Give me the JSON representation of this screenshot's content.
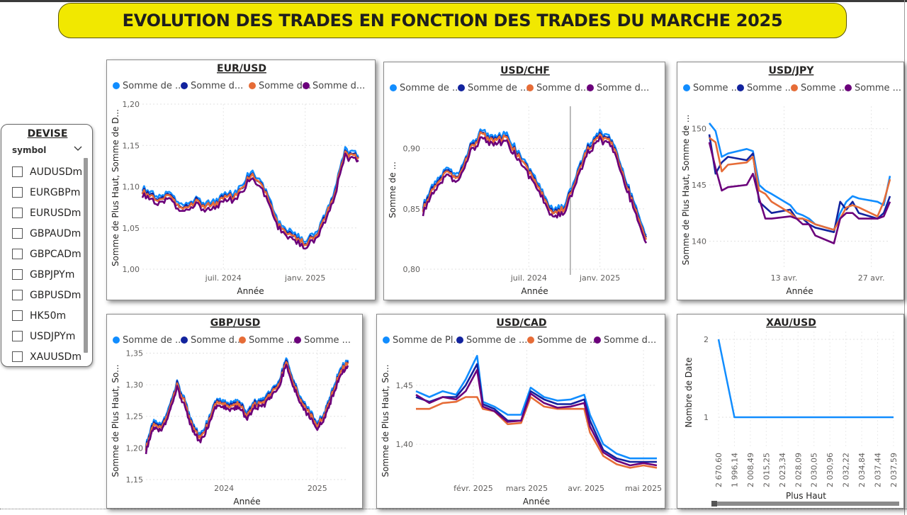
{
  "title": "EVOLUTION DES TRADES EN FONCTION DES TRADES DU MARCHE 2025",
  "slicer": {
    "title": "DEVISE",
    "field": "symbol",
    "items": [
      "AUDUSDm",
      "EURGBPm",
      "EURUSDm",
      "GBPAUDm",
      "GBPCADm",
      "GBPJPYm",
      "GBPUSDm",
      "HK50m",
      "USDJPYm",
      "XAUUSDm"
    ]
  },
  "colors": {
    "series": [
      "#118dff",
      "#12239e",
      "#e66c37",
      "#6b007b"
    ],
    "banner": "#f1e800"
  },
  "chart_data": [
    {
      "id": "eurusd",
      "type": "line",
      "title": "EUR/USD",
      "legend": [
        "Somme de ...",
        "Somme d...",
        "Somme d...",
        "Somme d..."
      ],
      "xlabel": "Année",
      "ylabel": "Somme de Plus Haut, Somme de D...",
      "xticks": [
        "juil. 2024",
        "janv. 2025"
      ],
      "yticks": [
        "1,20",
        "1,15",
        "1,10",
        "1,05",
        "1,00"
      ],
      "ylim": [
        1.0,
        1.2
      ],
      "series_offsets": [
        0.004,
        0.001,
        0.0,
        -0.004
      ],
      "x": [
        "2024-01",
        "2024-02",
        "2024-03",
        "2024-04",
        "2024-05",
        "2024-06",
        "2024-07",
        "2024-08",
        "2024-09",
        "2024-10",
        "2024-11",
        "2024-12",
        "2025-01",
        "2025-02",
        "2025-03",
        "2025-04",
        "2025-05"
      ],
      "base": [
        1.095,
        1.085,
        1.088,
        1.072,
        1.082,
        1.075,
        1.085,
        1.09,
        1.115,
        1.095,
        1.055,
        1.04,
        1.03,
        1.045,
        1.08,
        1.14,
        1.135
      ]
    },
    {
      "id": "usdchf",
      "type": "line",
      "title": "USD/CHF",
      "legend": [
        "Somme de ...",
        "Somme de ...",
        "Somme d...",
        "Somme d..."
      ],
      "xlabel": "Année",
      "ylabel": "Somme de ...",
      "xticks": [
        "juil. 2024",
        "janv. 2025"
      ],
      "yticks": [
        "0,90",
        "0,85",
        "0,80"
      ],
      "ylim": [
        0.8,
        0.935
      ],
      "series_offsets": [
        0.003,
        0.001,
        0.0,
        -0.003
      ],
      "x": [
        "2023-10",
        "2023-11",
        "2023-12",
        "2024-01",
        "2024-02",
        "2024-03",
        "2024-04",
        "2024-05",
        "2024-06",
        "2024-07",
        "2024-08",
        "2024-09",
        "2024-10",
        "2024-11",
        "2024-12",
        "2025-01",
        "2025-02",
        "2025-03",
        "2025-04",
        "2025-05"
      ],
      "base": [
        0.85,
        0.87,
        0.88,
        0.875,
        0.9,
        0.912,
        0.905,
        0.91,
        0.895,
        0.88,
        0.865,
        0.845,
        0.85,
        0.875,
        0.9,
        0.91,
        0.905,
        0.88,
        0.85,
        0.825
      ]
    },
    {
      "id": "usdjpy",
      "type": "line",
      "title": "USD/JPY",
      "legend": [
        "Somme ...",
        "Somme ...",
        "Somme ...",
        "Somme ..."
      ],
      "xlabel": "Année",
      "ylabel": "Somme de Plus Haut, Somme de ...",
      "xticks": [
        "13 avr.",
        "27 avr."
      ],
      "yticks": [
        "150",
        "145",
        "140"
      ],
      "ylim": [
        137.5,
        152
      ],
      "x": [
        "2025-04-01",
        "2025-04-02",
        "2025-04-03",
        "2025-04-04",
        "2025-04-07",
        "2025-04-08",
        "2025-04-09",
        "2025-04-10",
        "2025-04-11",
        "2025-04-14",
        "2025-04-15",
        "2025-04-16",
        "2025-04-17",
        "2025-04-18",
        "2025-04-21",
        "2025-04-22",
        "2025-04-23",
        "2025-04-24",
        "2025-04-25",
        "2025-04-28",
        "2025-04-29",
        "2025-04-30"
      ],
      "series": [
        {
          "values": [
            150.5,
            149.8,
            147.5,
            147.8,
            148.2,
            148.0,
            145.0,
            144.5,
            144.2,
            143.2,
            142.5,
            142.3,
            142.0,
            141.5,
            141.0,
            142.5,
            143.5,
            144.0,
            143.8,
            143.5,
            143.2,
            145.8
          ]
        },
        {
          "values": [
            149.5,
            146.0,
            147.0,
            147.5,
            147.2,
            147.8,
            143.5,
            143.0,
            142.5,
            142.8,
            142.0,
            142.0,
            141.5,
            141.2,
            140.8,
            143.5,
            142.8,
            143.5,
            142.5,
            142.0,
            142.5,
            144.0
          ]
        },
        {
          "values": [
            149.2,
            148.8,
            146.2,
            146.8,
            147.0,
            147.5,
            144.5,
            144.2,
            143.5,
            142.5,
            142.0,
            142.0,
            141.8,
            141.5,
            141.0,
            142.0,
            143.0,
            143.2,
            143.0,
            142.2,
            143.5,
            145.5
          ]
        },
        {
          "values": [
            148.8,
            146.5,
            144.5,
            144.8,
            145.0,
            146.0,
            143.8,
            142.0,
            142.0,
            142.2,
            142.0,
            141.5,
            141.5,
            140.5,
            139.8,
            142.0,
            142.5,
            142.5,
            142.0,
            142.0,
            142.2,
            143.5
          ]
        }
      ]
    },
    {
      "id": "gbpusd",
      "type": "line",
      "title": "GBP/USD",
      "legend": [
        "Somme de ...",
        "Somme d...",
        "Somme ...",
        "Somme ..."
      ],
      "xlabel": "Année",
      "ylabel": "Somme de Plus Haut, So...",
      "xticks": [
        "2024",
        "2025"
      ],
      "yticks": [
        "1,35",
        "1,30",
        "1,25",
        "1,20",
        "1,15"
      ],
      "ylim": [
        1.15,
        1.355
      ],
      "series_offsets": [
        0.005,
        0.002,
        0.0,
        -0.005
      ],
      "x": [
        "2023-03",
        "2023-04",
        "2023-05",
        "2023-06",
        "2023-07",
        "2023-08",
        "2023-09",
        "2023-10",
        "2023-11",
        "2023-12",
        "2024-01",
        "2024-02",
        "2024-03",
        "2024-04",
        "2024-05",
        "2024-06",
        "2024-07",
        "2024-08",
        "2024-09",
        "2024-10",
        "2024-11",
        "2024-12",
        "2025-01",
        "2025-02",
        "2025-03",
        "2025-04",
        "2025-05"
      ],
      "base": [
        1.2,
        1.24,
        1.23,
        1.26,
        1.3,
        1.27,
        1.23,
        1.215,
        1.24,
        1.27,
        1.27,
        1.265,
        1.27,
        1.25,
        1.27,
        1.27,
        1.285,
        1.3,
        1.335,
        1.3,
        1.27,
        1.255,
        1.235,
        1.255,
        1.285,
        1.32,
        1.335
      ]
    },
    {
      "id": "usdcad",
      "type": "line",
      "title": "USD/CAD",
      "legend": [
        "Somme de  Pl...",
        "Somme de ...",
        "Somme de ...",
        "Somme d..."
      ],
      "xlabel": "Année",
      "ylabel": "Somme de Plus Haut, So...",
      "xticks": [
        "févr. 2025",
        "mars 2025",
        "avr. 2025",
        "mai 2025"
      ],
      "yticks": [
        "1,45",
        "1,40"
      ],
      "ylim": [
        1.37,
        1.48
      ],
      "x": [
        "2025-01-02",
        "2025-01-09",
        "2025-01-16",
        "2025-01-23",
        "2025-01-28",
        "2025-02-03",
        "2025-02-06",
        "2025-02-12",
        "2025-02-19",
        "2025-02-26",
        "2025-03-03",
        "2025-03-10",
        "2025-03-17",
        "2025-03-24",
        "2025-03-31",
        "2025-04-03",
        "2025-04-10",
        "2025-04-17",
        "2025-04-24",
        "2025-05-01",
        "2025-05-08"
      ],
      "series": [
        {
          "values": [
            1.445,
            1.44,
            1.445,
            1.442,
            1.455,
            1.475,
            1.436,
            1.432,
            1.425,
            1.425,
            1.448,
            1.44,
            1.437,
            1.438,
            1.442,
            1.425,
            1.4,
            1.392,
            1.388,
            1.388,
            1.388
          ]
        },
        {
          "values": [
            1.44,
            1.436,
            1.44,
            1.44,
            1.45,
            1.468,
            1.434,
            1.43,
            1.42,
            1.42,
            1.445,
            1.438,
            1.434,
            1.434,
            1.438,
            1.42,
            1.395,
            1.388,
            1.385,
            1.385,
            1.385
          ]
        },
        {
          "values": [
            1.43,
            1.43,
            1.435,
            1.436,
            1.44,
            1.44,
            1.43,
            1.428,
            1.417,
            1.418,
            1.44,
            1.432,
            1.43,
            1.43,
            1.43,
            1.41,
            1.39,
            1.383,
            1.38,
            1.382,
            1.38
          ]
        },
        {
          "values": [
            1.442,
            1.435,
            1.44,
            1.438,
            1.445,
            1.463,
            1.432,
            1.428,
            1.419,
            1.42,
            1.443,
            1.435,
            1.431,
            1.432,
            1.435,
            1.415,
            1.393,
            1.386,
            1.382,
            1.384,
            1.382
          ]
        }
      ]
    },
    {
      "id": "xauusd",
      "type": "line",
      "title": "XAU/USD",
      "xlabel": "Plus Haut",
      "ylabel": "Nombre de Date",
      "yticks": [
        "2",
        "1"
      ],
      "ylim": [
        0.6,
        2.1
      ],
      "categories": [
        "2 670,60",
        "1 996,14",
        "2 008,49",
        "2 015,25",
        "2 023,34",
        "2 028,09",
        "2 030,05",
        "2 030,96",
        "2 032,22",
        "2 034,84",
        "2 037,44",
        "2 037,59"
      ],
      "values": [
        2,
        1,
        1,
        1,
        1,
        1,
        1,
        1,
        1,
        1,
        1,
        1
      ]
    }
  ]
}
